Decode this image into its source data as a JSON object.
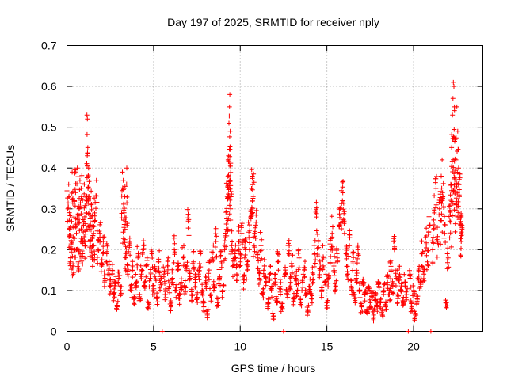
{
  "chart_data": {
    "type": "scatter",
    "title": "Day 197 of 2025, SRMTID for receiver nply",
    "xlabel": "GPS time / hours",
    "ylabel": "SRMTID / TECUs",
    "xlim": [
      0,
      24
    ],
    "ylim": [
      0,
      0.7
    ],
    "xticks": [
      0,
      5,
      10,
      15,
      20
    ],
    "yticks": [
      0,
      0.1,
      0.2,
      0.3,
      0.4,
      0.5,
      0.6,
      0.7
    ],
    "ytick_labels": [
      "0",
      "0.1",
      "0.2",
      "0.3",
      "0.4",
      "0.5",
      "0.6",
      "0.7"
    ],
    "grid": true,
    "marker": "+",
    "color": "#ff0000",
    "series": [
      {
        "name": "SRMTID",
        "points": [
          [
            0.05,
            0.3
          ],
          [
            0.1,
            0.36
          ],
          [
            0.15,
            0.25
          ],
          [
            0.2,
            0.18
          ],
          [
            0.25,
            0.22
          ],
          [
            0.3,
            0.39
          ],
          [
            0.35,
            0.16
          ],
          [
            0.4,
            0.28
          ],
          [
            0.45,
            0.2
          ],
          [
            0.5,
            0.34
          ],
          [
            0.55,
            0.24
          ],
          [
            0.6,
            0.4
          ],
          [
            0.65,
            0.17
          ],
          [
            0.7,
            0.3
          ],
          [
            0.75,
            0.37
          ],
          [
            0.8,
            0.22
          ],
          [
            0.85,
            0.33
          ],
          [
            0.9,
            0.19
          ],
          [
            0.95,
            0.26
          ],
          [
            1.0,
            0.36
          ],
          [
            1.05,
            0.21
          ],
          [
            1.1,
            0.29
          ],
          [
            1.15,
            0.53
          ],
          [
            1.18,
            0.52
          ],
          [
            1.2,
            0.45
          ],
          [
            1.25,
            0.4
          ],
          [
            1.3,
            0.25
          ],
          [
            1.35,
            0.22
          ],
          [
            1.4,
            0.31
          ],
          [
            1.45,
            0.18
          ],
          [
            1.5,
            0.27
          ],
          [
            1.55,
            0.21
          ],
          [
            1.6,
            0.29
          ],
          [
            1.7,
            0.37
          ],
          [
            1.8,
            0.2
          ],
          [
            1.9,
            0.24
          ],
          [
            2.0,
            0.16
          ],
          [
            2.1,
            0.22
          ],
          [
            2.2,
            0.13
          ],
          [
            2.3,
            0.19
          ],
          [
            2.4,
            0.15
          ],
          [
            2.5,
            0.11
          ],
          [
            2.6,
            0.14
          ],
          [
            2.7,
            0.09
          ],
          [
            2.8,
            0.12
          ],
          [
            2.9,
            0.06
          ],
          [
            3.0,
            0.13
          ],
          [
            3.1,
            0.1
          ],
          [
            3.2,
            0.39
          ],
          [
            3.25,
            0.37
          ],
          [
            3.3,
            0.35
          ],
          [
            3.35,
            0.25
          ],
          [
            3.4,
            0.18
          ],
          [
            3.45,
            0.4
          ],
          [
            3.5,
            0.14
          ],
          [
            3.6,
            0.21
          ],
          [
            3.7,
            0.1
          ],
          [
            3.8,
            0.16
          ],
          [
            3.9,
            0.08
          ],
          [
            4.0,
            0.12
          ],
          [
            4.1,
            0.18
          ],
          [
            4.2,
            0.09
          ],
          [
            4.3,
            0.14
          ],
          [
            4.4,
            0.2
          ],
          [
            4.5,
            0.11
          ],
          [
            4.6,
            0.16
          ],
          [
            4.7,
            0.07
          ],
          [
            4.8,
            0.13
          ],
          [
            4.9,
            0.19
          ],
          [
            5.0,
            0.1
          ],
          [
            5.1,
            0.15
          ],
          [
            5.2,
            0.08
          ],
          [
            5.3,
            0.17
          ],
          [
            5.4,
            0.12
          ],
          [
            5.5,
            0.0
          ],
          [
            5.6,
            0.14
          ],
          [
            5.7,
            0.09
          ],
          [
            5.8,
            0.16
          ],
          [
            5.9,
            0.11
          ],
          [
            6.0,
            0.06
          ],
          [
            6.1,
            0.13
          ],
          [
            6.2,
            0.2
          ],
          [
            6.3,
            0.1
          ],
          [
            6.4,
            0.15
          ],
          [
            6.5,
            0.08
          ],
          [
            6.6,
            0.12
          ],
          [
            6.7,
            0.18
          ],
          [
            6.8,
            0.11
          ],
          [
            6.9,
            0.16
          ],
          [
            7.0,
            0.27
          ],
          [
            7.1,
            0.13
          ],
          [
            7.2,
            0.09
          ],
          [
            7.3,
            0.17
          ],
          [
            7.4,
            0.12
          ],
          [
            7.5,
            0.08
          ],
          [
            7.6,
            0.14
          ],
          [
            7.7,
            0.19
          ],
          [
            7.8,
            0.1
          ],
          [
            7.9,
            0.06
          ],
          [
            8.0,
            0.12
          ],
          [
            8.1,
            0.04
          ],
          [
            8.2,
            0.15
          ],
          [
            8.3,
            0.09
          ],
          [
            8.4,
            0.18
          ],
          [
            8.5,
            0.11
          ],
          [
            8.6,
            0.22
          ],
          [
            8.7,
            0.07
          ],
          [
            8.8,
            0.13
          ],
          [
            8.9,
            0.17
          ],
          [
            9.0,
            0.1
          ],
          [
            9.1,
            0.2
          ],
          [
            9.2,
            0.25
          ],
          [
            9.25,
            0.33
          ],
          [
            9.3,
            0.42
          ],
          [
            9.32,
            0.43
          ],
          [
            9.35,
            0.51
          ],
          [
            9.38,
            0.55
          ],
          [
            9.4,
            0.58
          ],
          [
            9.42,
            0.49
          ],
          [
            9.45,
            0.3
          ],
          [
            9.5,
            0.21
          ],
          [
            9.6,
            0.16
          ],
          [
            9.7,
            0.19
          ],
          [
            9.8,
            0.14
          ],
          [
            9.9,
            0.22
          ],
          [
            10.0,
            0.17
          ],
          [
            10.1,
            0.24
          ],
          [
            10.2,
            0.12
          ],
          [
            10.3,
            0.2
          ],
          [
            10.4,
            0.15
          ],
          [
            10.5,
            0.23
          ],
          [
            10.6,
            0.28
          ],
          [
            10.65,
            0.35
          ],
          [
            10.7,
            0.38
          ],
          [
            10.75,
            0.33
          ],
          [
            10.8,
            0.21
          ],
          [
            10.9,
            0.26
          ],
          [
            11.0,
            0.18
          ],
          [
            11.1,
            0.13
          ],
          [
            11.2,
            0.21
          ],
          [
            11.3,
            0.09
          ],
          [
            11.4,
            0.16
          ],
          [
            11.5,
            0.12
          ],
          [
            11.6,
            0.07
          ],
          [
            11.7,
            0.14
          ],
          [
            11.8,
            0.1
          ],
          [
            11.9,
            0.03
          ],
          [
            12.0,
            0.13
          ],
          [
            12.1,
            0.08
          ],
          [
            12.2,
            0.17
          ],
          [
            12.3,
            0.11
          ],
          [
            12.4,
            0.06
          ],
          [
            12.5,
            0.0
          ],
          [
            12.6,
            0.15
          ],
          [
            12.7,
            0.09
          ],
          [
            12.8,
            0.19
          ],
          [
            12.9,
            0.12
          ],
          [
            13.0,
            0.16
          ],
          [
            13.1,
            0.08
          ],
          [
            13.2,
            0.13
          ],
          [
            13.3,
            0.1
          ],
          [
            13.4,
            0.18
          ],
          [
            13.5,
            0.07
          ],
          [
            13.6,
            0.12
          ],
          [
            13.7,
            0.15
          ],
          [
            13.8,
            0.09
          ],
          [
            13.9,
            0.05
          ],
          [
            14.0,
            0.11
          ],
          [
            14.1,
            0.08
          ],
          [
            14.2,
            0.14
          ],
          [
            14.3,
            0.19
          ],
          [
            14.4,
            0.28
          ],
          [
            14.5,
            0.22
          ],
          [
            14.6,
            0.15
          ],
          [
            14.7,
            0.1
          ],
          [
            14.8,
            0.18
          ],
          [
            14.9,
            0.12
          ],
          [
            15.0,
            0.07
          ],
          [
            15.1,
            0.13
          ],
          [
            15.2,
            0.2
          ],
          [
            15.3,
            0.24
          ],
          [
            15.4,
            0.16
          ],
          [
            15.5,
            0.11
          ],
          [
            15.6,
            0.18
          ],
          [
            15.7,
            0.26
          ],
          [
            15.8,
            0.3
          ],
          [
            15.9,
            0.32
          ],
          [
            16.0,
            0.27
          ],
          [
            16.1,
            0.19
          ],
          [
            16.2,
            0.14
          ],
          [
            16.3,
            0.21
          ],
          [
            16.4,
            0.11
          ],
          [
            16.5,
            0.17
          ],
          [
            16.6,
            0.08
          ],
          [
            16.7,
            0.13
          ],
          [
            16.8,
            0.2
          ],
          [
            16.9,
            0.1
          ],
          [
            17.0,
            0.06
          ],
          [
            17.1,
            0.12
          ],
          [
            17.2,
            0.09
          ],
          [
            17.3,
            0.05
          ],
          [
            17.4,
            0.11
          ],
          [
            17.5,
            0.07
          ],
          [
            17.6,
            0.1
          ],
          [
            17.7,
            0.04
          ],
          [
            17.8,
            0.09
          ],
          [
            17.9,
            0.06
          ],
          [
            18.0,
            0.11
          ],
          [
            18.1,
            0.07
          ],
          [
            18.2,
            0.04
          ],
          [
            18.3,
            0.1
          ],
          [
            18.4,
            0.06
          ],
          [
            18.5,
            0.12
          ],
          [
            18.6,
            0.09
          ],
          [
            18.7,
            0.15
          ],
          [
            18.8,
            0.11
          ],
          [
            18.9,
            0.2
          ],
          [
            19.0,
            0.13
          ],
          [
            19.1,
            0.08
          ],
          [
            19.2,
            0.14
          ],
          [
            19.3,
            0.1
          ],
          [
            19.4,
            0.07
          ],
          [
            19.5,
            0.12
          ],
          [
            19.6,
            0.09
          ],
          [
            19.7,
            0.0
          ],
          [
            19.8,
            0.13
          ],
          [
            19.9,
            0.06
          ],
          [
            20.0,
            0.1
          ],
          [
            20.1,
            0.04
          ],
          [
            20.2,
            0.08
          ],
          [
            20.3,
            0.15
          ],
          [
            20.4,
            0.11
          ],
          [
            20.5,
            0.19
          ],
          [
            20.6,
            0.14
          ],
          [
            20.7,
            0.23
          ],
          [
            20.8,
            0.17
          ],
          [
            20.9,
            0.26
          ],
          [
            21.0,
            0.0
          ],
          [
            21.1,
            0.2
          ],
          [
            21.2,
            0.29
          ],
          [
            21.3,
            0.35
          ],
          [
            21.4,
            0.22
          ],
          [
            21.5,
            0.3
          ],
          [
            21.6,
            0.38
          ],
          [
            21.65,
            0.42
          ],
          [
            21.7,
            0.33
          ],
          [
            21.8,
            0.24
          ],
          [
            21.9,
            0.07
          ],
          [
            22.0,
            0.18
          ],
          [
            22.1,
            0.27
          ],
          [
            22.15,
            0.36
          ],
          [
            22.2,
            0.45
          ],
          [
            22.25,
            0.53
          ],
          [
            22.3,
            0.61
          ],
          [
            22.33,
            0.6
          ],
          [
            22.36,
            0.55
          ],
          [
            22.4,
            0.47
          ],
          [
            22.45,
            0.42
          ],
          [
            22.5,
            0.55
          ],
          [
            22.55,
            0.49
          ],
          [
            22.6,
            0.4
          ],
          [
            22.65,
            0.33
          ],
          [
            22.7,
            0.28
          ],
          [
            22.75,
            0.22
          ],
          [
            22.8,
            0.25
          ]
        ]
      }
    ]
  }
}
